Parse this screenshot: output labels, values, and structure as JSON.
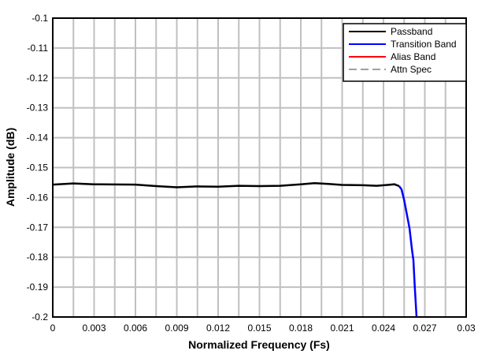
{
  "chart_data": {
    "type": "line",
    "title": "",
    "xlabel": "Normalized Frequency (Fs)",
    "ylabel": "Amplitude (dB)",
    "xlim": [
      0,
      0.03
    ],
    "ylim": [
      -0.2,
      -0.1
    ],
    "xticks": [
      "0",
      "0.003",
      "0.006",
      "0.009",
      "0.012",
      "0.015",
      "0.018",
      "0.021",
      "0.024",
      "0.027",
      "0.03"
    ],
    "yticks": [
      "-0.1",
      "-0.11",
      "-0.12",
      "-0.13",
      "-0.14",
      "-0.15",
      "-0.16",
      "-0.17",
      "-0.18",
      "-0.19",
      "-0.2"
    ],
    "grid": true,
    "legend_position": "top-right",
    "series": [
      {
        "name": "Passband",
        "color": "#000000",
        "dash": "solid",
        "x": [
          0,
          0.0015,
          0.003,
          0.006,
          0.0075,
          0.009,
          0.0105,
          0.012,
          0.0135,
          0.015,
          0.0165,
          0.018,
          0.019,
          0.02,
          0.021,
          0.0225,
          0.0235,
          0.0243,
          0.0248,
          0.02514
        ],
        "y": [
          -0.1557,
          -0.1553,
          -0.1556,
          -0.1557,
          -0.1562,
          -0.1566,
          -0.1563,
          -0.1564,
          -0.1561,
          -0.1562,
          -0.1561,
          -0.1556,
          -0.1552,
          -0.1555,
          -0.1558,
          -0.1559,
          -0.1561,
          -0.1558,
          -0.1556,
          -0.1562
        ]
      },
      {
        "name": "Transition Band",
        "color": "#0000ff",
        "dash": "solid",
        "x": [
          0.02514,
          0.02531,
          0.02549,
          0.02569,
          0.02589,
          0.02607,
          0.02617,
          0.02627,
          0.0264
        ],
        "y": [
          -0.1562,
          -0.1573,
          -0.1607,
          -0.1655,
          -0.1704,
          -0.1775,
          -0.181,
          -0.1897,
          -0.2
        ]
      },
      {
        "name": "Alias Band",
        "color": "#ff0000",
        "dash": "solid",
        "x": [],
        "y": []
      },
      {
        "name": "Attn Spec",
        "color": "#a0a0a0",
        "dash": "dashed",
        "x": [],
        "y": []
      }
    ]
  }
}
